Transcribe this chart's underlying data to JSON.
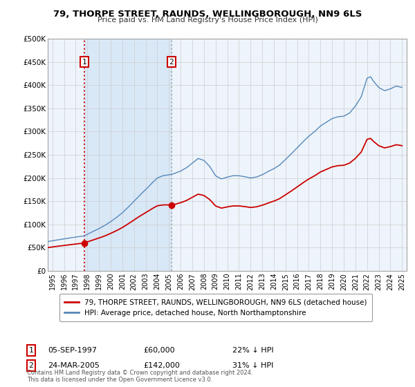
{
  "title": "79, THORPE STREET, RAUNDS, WELLINGBOROUGH, NN9 6LS",
  "subtitle": "Price paid vs. HM Land Registry's House Price Index (HPI)",
  "legend_line1": "79, THORPE STREET, RAUNDS, WELLINGBOROUGH, NN9 6LS (detached house)",
  "legend_line2": "HPI: Average price, detached house, North Northamptonshire",
  "sale1_label": "1",
  "sale1_date": "05-SEP-1997",
  "sale1_price": "£60,000",
  "sale1_hpi": "22% ↓ HPI",
  "sale2_label": "2",
  "sale2_date": "24-MAR-2005",
  "sale2_price": "£142,000",
  "sale2_hpi": "31% ↓ HPI",
  "footer": "Contains HM Land Registry data © Crown copyright and database right 2024.\nThis data is licensed under the Open Government Licence v3.0.",
  "red_color": "#cc0000",
  "blue_color": "#5588bb",
  "shade_color": "#ddeeff",
  "background_color": "#ffffff",
  "grid_color": "#cccccc",
  "sale1_x": 1997.75,
  "sale1_y": 60000,
  "sale2_x": 2005.22,
  "sale2_y": 142000,
  "xmin": 1994.6,
  "xmax": 2025.4,
  "ymin": 0,
  "ymax": 500000,
  "yticks": [
    0,
    50000,
    100000,
    150000,
    200000,
    250000,
    300000,
    350000,
    400000,
    450000,
    500000
  ],
  "ytick_labels": [
    "£0",
    "£50K",
    "£100K",
    "£150K",
    "£200K",
    "£250K",
    "£300K",
    "£350K",
    "£400K",
    "£450K",
    "£500K"
  ],
  "xticks": [
    1995,
    1996,
    1997,
    1998,
    1999,
    2000,
    2001,
    2002,
    2003,
    2004,
    2005,
    2006,
    2007,
    2008,
    2009,
    2010,
    2011,
    2012,
    2013,
    2014,
    2015,
    2016,
    2017,
    2018,
    2019,
    2020,
    2021,
    2022,
    2023,
    2024,
    2025
  ]
}
